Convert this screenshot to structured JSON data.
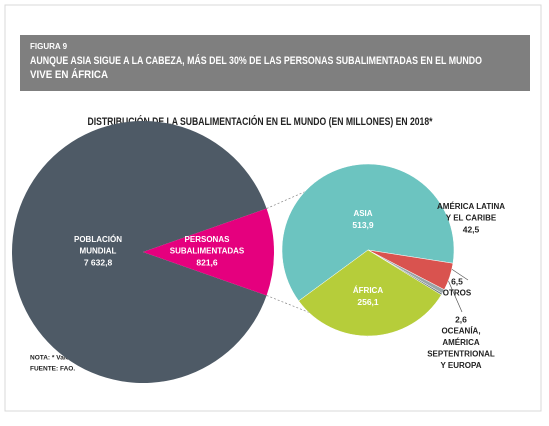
{
  "header": {
    "figure": "FIGURA 9",
    "title_lines": [
      "AUNQUE ASIA SIGUE A LA CABEZA, MÁS DEL 30% DE LAS PERSONAS SUBALIMENTADAS EN EL MUNDO",
      "VIVE EN ÁFRICA"
    ]
  },
  "chart_data": {
    "type": "pie-of-pie",
    "title": "DISTRIBUCIÓN DE LA SUBALIMENTACIÓN EN EL MUNDO (EN MILLONES) EN 2018*",
    "pies": [
      {
        "categories": [
          [
            "POBLACIÓN",
            "MUNDIAL"
          ],
          [
            "PERSONAS",
            "SUBALIMENTADAS"
          ]
        ],
        "values": [
          7632.8,
          821.6
        ],
        "value_labels": [
          "7 632,8",
          "821,6"
        ],
        "colors": [
          "#4e5a66",
          "#e5007e"
        ]
      },
      {
        "categories": [
          [
            "ASIA"
          ],
          [
            "AMÉRICA LATINA",
            "Y EL CARIBE"
          ],
          [
            "OTROS"
          ],
          [
            "OCEANÍA,",
            "AMÉRICA",
            "SEPTENTRIONAL",
            "Y EUROPA"
          ],
          [
            "ÁFRICA"
          ]
        ],
        "values": [
          513.9,
          42.5,
          6.5,
          2.6,
          256.1
        ],
        "value_labels": [
          "513,9",
          "42,5",
          "6,5",
          "2,6",
          "256,1"
        ],
        "colors": [
          "#6cc4c0",
          "#d9534f",
          "#9aa5a8",
          "#6d7b80",
          "#b6cd3a"
        ]
      }
    ]
  },
  "notes": [
    "NOTA: * Valores proyectados.",
    "FUENTE: FAO."
  ]
}
